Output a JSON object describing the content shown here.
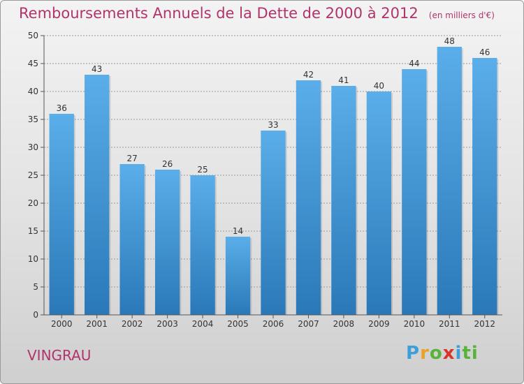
{
  "header": {
    "title": "Remboursements Annuels de la Dette de 2000 à 2012",
    "unit": "(en milliers d'€)"
  },
  "commune": "VINGRAU",
  "logo": {
    "letters": [
      "P",
      "r",
      "o",
      "x",
      "i",
      "ti"
    ]
  },
  "colors": {
    "title": "#b0346b",
    "bar_light": "#5aaee9",
    "bar_dark": "#2a78b8",
    "grid": "#9a9a9a"
  },
  "chart_data": {
    "type": "bar",
    "categories": [
      "2000",
      "2001",
      "2002",
      "2003",
      "2004",
      "2005",
      "2006",
      "2007",
      "2008",
      "2009",
      "2010",
      "2011",
      "2012"
    ],
    "values": [
      36,
      43,
      27,
      26,
      25,
      14,
      33,
      42,
      41,
      40,
      44,
      48,
      46
    ],
    "title": "Remboursements Annuels de la Dette de 2000 à 2012",
    "xlabel": "",
    "ylabel": "",
    "ylim": [
      0,
      50
    ],
    "yticks": [
      0,
      5,
      10,
      15,
      20,
      25,
      30,
      35,
      40,
      45,
      50
    ],
    "grid": true,
    "data_labels": true
  }
}
